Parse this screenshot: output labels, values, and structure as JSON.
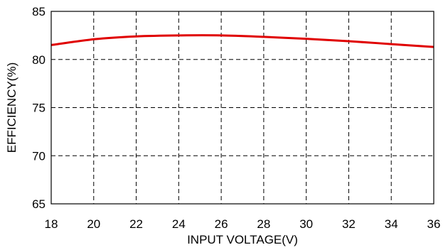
{
  "chart_data": {
    "type": "line",
    "title": "",
    "xlabel": "INPUT VOLTAGE(V)",
    "ylabel": "EFFICIENCY(%)",
    "xlim": [
      18,
      36
    ],
    "ylim": [
      65,
      85
    ],
    "xticks": [
      18,
      20,
      22,
      24,
      26,
      28,
      30,
      32,
      34,
      36
    ],
    "yticks": [
      65,
      70,
      75,
      80,
      85
    ],
    "grid": true,
    "legend": "none",
    "series": [
      {
        "color": "#e00000",
        "x": [
          18,
          20,
          22,
          24,
          26,
          28,
          30,
          32,
          34,
          36
        ],
        "y": [
          81.5,
          82.1,
          82.4,
          82.5,
          82.5,
          82.35,
          82.15,
          81.9,
          81.6,
          81.3
        ]
      }
    ]
  }
}
